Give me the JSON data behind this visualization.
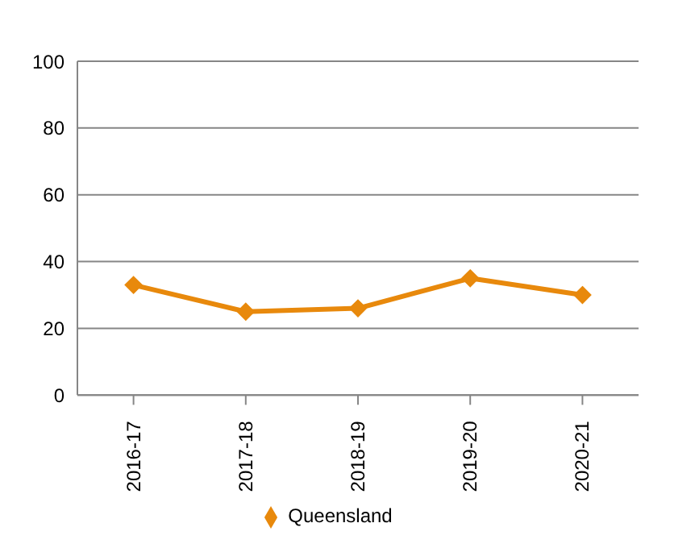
{
  "chart_data": {
    "type": "line",
    "categories": [
      "2016-17",
      "2017-18",
      "2018-19",
      "2019-20",
      "2020-21"
    ],
    "series": [
      {
        "name": "Queensland",
        "color": "#e8890c",
        "values": [
          33,
          25,
          26,
          35,
          30
        ]
      }
    ],
    "ylim": [
      0,
      100
    ],
    "yticks": [
      0,
      20,
      40,
      60,
      80,
      100
    ],
    "grid": "y",
    "legend": "bottom",
    "marker": "diamond",
    "line_style": "solid"
  }
}
